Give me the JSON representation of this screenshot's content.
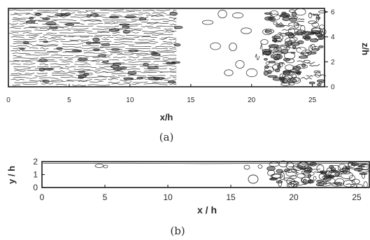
{
  "panels": [
    {
      "id": "a",
      "caption": "(a)",
      "x_label": "x/h",
      "y_label": "z/h",
      "x_ticks": [
        0,
        5,
        10,
        15,
        20,
        25
      ],
      "y_ticks": [
        0,
        2,
        4,
        6
      ],
      "x_range": [
        0,
        26
      ],
      "y_range": [
        0,
        6.28
      ]
    },
    {
      "id": "b",
      "caption": "(b)",
      "x_label": "x / h",
      "y_label": "y / h",
      "x_ticks": [
        0,
        5,
        10,
        15,
        20,
        25
      ],
      "y_ticks": [
        0,
        1,
        2
      ],
      "x_range": [
        0,
        26
      ],
      "y_range": [
        0,
        2
      ]
    }
  ],
  "colors": {
    "contour": "#3a3a3a",
    "contour_dense": "#222222",
    "axis": "#1a1a1a",
    "background": "#ffffff"
  }
}
